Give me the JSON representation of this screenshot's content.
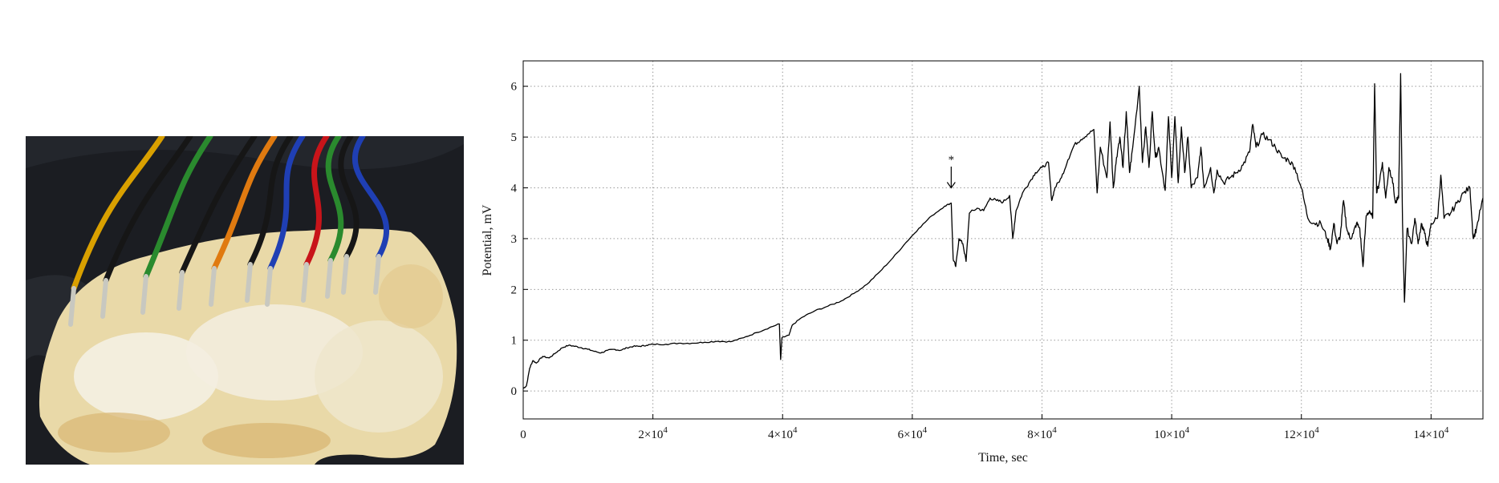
{
  "photo": {
    "colors": {
      "background": "#1b1d22",
      "substrate": "#e9d9a8",
      "mycelium": "#f4efe2",
      "wire_colors": [
        "#d9a000",
        "#2a8a2e",
        "#e07a10",
        "#c8141a",
        "#1f3fb4",
        "#161616",
        "#c8c8c0"
      ]
    }
  },
  "chart_data": {
    "type": "line",
    "xlabel": "Time, sec",
    "ylabel": "Potential, mV",
    "xlim": [
      0,
      148000
    ],
    "ylim": [
      -0.55,
      6.5
    ],
    "xticks": [
      0,
      20000,
      40000,
      60000,
      80000,
      100000,
      120000,
      140000
    ],
    "xtick_labels": [
      {
        "mant": "0",
        "exp": ""
      },
      {
        "mant": "2×10",
        "exp": "4"
      },
      {
        "mant": "4×10",
        "exp": "4"
      },
      {
        "mant": "6×10",
        "exp": "4"
      },
      {
        "mant": "8×10",
        "exp": "4"
      },
      {
        "mant": "10×10",
        "exp": "4"
      },
      {
        "mant": "12×10",
        "exp": "4"
      },
      {
        "mant": "14×10",
        "exp": "4"
      }
    ],
    "yticks": [
      0,
      1,
      2,
      3,
      4,
      5,
      6
    ],
    "grid": true,
    "line_color": "#000000",
    "annotation": {
      "text": "*",
      "x": 66000,
      "y_from": 4.45,
      "y_to": 4.0
    },
    "series": [
      {
        "values": [
          [
            0,
            0.05
          ],
          [
            500,
            0.1
          ],
          [
            1000,
            0.45
          ],
          [
            1500,
            0.6
          ],
          [
            2000,
            0.55
          ],
          [
            3000,
            0.68
          ],
          [
            4000,
            0.65
          ],
          [
            5000,
            0.75
          ],
          [
            6000,
            0.85
          ],
          [
            7000,
            0.9
          ],
          [
            8000,
            0.88
          ],
          [
            9000,
            0.85
          ],
          [
            10000,
            0.82
          ],
          [
            11000,
            0.78
          ],
          [
            12000,
            0.75
          ],
          [
            13000,
            0.8
          ],
          [
            14000,
            0.82
          ],
          [
            15000,
            0.8
          ],
          [
            16000,
            0.85
          ],
          [
            17000,
            0.88
          ],
          [
            18000,
            0.88
          ],
          [
            19000,
            0.9
          ],
          [
            20000,
            0.92
          ],
          [
            22000,
            0.92
          ],
          [
            24000,
            0.94
          ],
          [
            26000,
            0.94
          ],
          [
            28000,
            0.96
          ],
          [
            30000,
            0.98
          ],
          [
            32000,
            0.97
          ],
          [
            34000,
            1.05
          ],
          [
            36000,
            1.15
          ],
          [
            38000,
            1.25
          ],
          [
            39500,
            1.32
          ],
          [
            39700,
            0.62
          ],
          [
            39900,
            1.05
          ],
          [
            41000,
            1.1
          ],
          [
            41500,
            1.3
          ],
          [
            43000,
            1.45
          ],
          [
            45000,
            1.58
          ],
          [
            47000,
            1.67
          ],
          [
            49000,
            1.77
          ],
          [
            51000,
            1.92
          ],
          [
            53000,
            2.1
          ],
          [
            55000,
            2.35
          ],
          [
            57000,
            2.62
          ],
          [
            59000,
            2.92
          ],
          [
            61000,
            3.2
          ],
          [
            63000,
            3.45
          ],
          [
            65000,
            3.64
          ],
          [
            66000,
            3.7
          ],
          [
            66300,
            2.6
          ],
          [
            66700,
            2.45
          ],
          [
            67200,
            3.0
          ],
          [
            67800,
            2.9
          ],
          [
            68300,
            2.55
          ],
          [
            68800,
            3.5
          ],
          [
            70000,
            3.6
          ],
          [
            71000,
            3.55
          ],
          [
            72000,
            3.8
          ],
          [
            73000,
            3.75
          ],
          [
            74000,
            3.72
          ],
          [
            75000,
            3.85
          ],
          [
            75500,
            3.0
          ],
          [
            76000,
            3.55
          ],
          [
            77000,
            3.9
          ],
          [
            78000,
            4.1
          ],
          [
            79000,
            4.3
          ],
          [
            80000,
            4.4
          ],
          [
            81000,
            4.5
          ],
          [
            81500,
            3.75
          ],
          [
            82000,
            4.0
          ],
          [
            83000,
            4.2
          ],
          [
            84000,
            4.55
          ],
          [
            85000,
            4.85
          ],
          [
            86000,
            4.95
          ],
          [
            87000,
            5.05
          ],
          [
            88000,
            5.15
          ],
          [
            88500,
            3.9
          ],
          [
            89000,
            4.8
          ],
          [
            90000,
            4.2
          ],
          [
            90500,
            5.3
          ],
          [
            91000,
            4.0
          ],
          [
            91500,
            4.6
          ],
          [
            92000,
            5.0
          ],
          [
            92500,
            4.4
          ],
          [
            93000,
            5.5
          ],
          [
            93500,
            4.3
          ],
          [
            94000,
            4.8
          ],
          [
            95000,
            6.0
          ],
          [
            95500,
            4.5
          ],
          [
            96000,
            5.2
          ],
          [
            96500,
            4.4
          ],
          [
            97000,
            5.5
          ],
          [
            97500,
            4.6
          ],
          [
            98000,
            4.8
          ],
          [
            99000,
            3.95
          ],
          [
            99500,
            5.4
          ],
          [
            100000,
            4.2
          ],
          [
            100500,
            5.4
          ],
          [
            101000,
            4.1
          ],
          [
            101500,
            5.2
          ],
          [
            102000,
            4.3
          ],
          [
            102500,
            5.0
          ],
          [
            103000,
            4.0
          ],
          [
            104000,
            4.2
          ],
          [
            104500,
            4.8
          ],
          [
            105000,
            4.0
          ],
          [
            106000,
            4.4
          ],
          [
            106500,
            3.9
          ],
          [
            107000,
            4.35
          ],
          [
            108000,
            4.1
          ],
          [
            109000,
            4.2
          ],
          [
            110000,
            4.3
          ],
          [
            111000,
            4.45
          ],
          [
            112000,
            4.7
          ],
          [
            112500,
            5.25
          ],
          [
            113000,
            4.8
          ],
          [
            114000,
            5.05
          ],
          [
            115000,
            4.95
          ],
          [
            116000,
            4.8
          ],
          [
            117000,
            4.6
          ],
          [
            118000,
            4.55
          ],
          [
            119000,
            4.4
          ],
          [
            120000,
            4.0
          ],
          [
            121000,
            3.4
          ],
          [
            122000,
            3.3
          ],
          [
            123000,
            3.3
          ],
          [
            124000,
            3.0
          ],
          [
            124500,
            2.8
          ],
          [
            125000,
            3.3
          ],
          [
            125500,
            2.9
          ],
          [
            126000,
            3.05
          ],
          [
            126500,
            3.75
          ],
          [
            127000,
            3.2
          ],
          [
            127500,
            3.0
          ],
          [
            128000,
            3.1
          ],
          [
            128500,
            3.3
          ],
          [
            129000,
            3.2
          ],
          [
            129500,
            2.45
          ],
          [
            130000,
            3.45
          ],
          [
            130500,
            3.55
          ],
          [
            131000,
            3.4
          ],
          [
            131300,
            6.05
          ],
          [
            131600,
            3.9
          ],
          [
            132000,
            4.1
          ],
          [
            132500,
            4.5
          ],
          [
            133000,
            3.8
          ],
          [
            133500,
            4.4
          ],
          [
            134000,
            4.2
          ],
          [
            134500,
            3.7
          ],
          [
            135000,
            3.8
          ],
          [
            135300,
            6.25
          ],
          [
            135600,
            3.3
          ],
          [
            135900,
            1.75
          ],
          [
            136300,
            3.2
          ],
          [
            137000,
            2.9
          ],
          [
            137500,
            3.4
          ],
          [
            138000,
            2.9
          ],
          [
            138500,
            3.3
          ],
          [
            139000,
            3.1
          ],
          [
            139500,
            2.85
          ],
          [
            140000,
            3.3
          ],
          [
            141000,
            3.4
          ],
          [
            141500,
            4.25
          ],
          [
            142000,
            3.4
          ],
          [
            143000,
            3.5
          ],
          [
            144000,
            3.7
          ],
          [
            145000,
            3.9
          ],
          [
            146000,
            4.0
          ],
          [
            146500,
            3.0
          ],
          [
            147000,
            3.2
          ],
          [
            148000,
            3.8
          ]
        ]
      }
    ]
  }
}
